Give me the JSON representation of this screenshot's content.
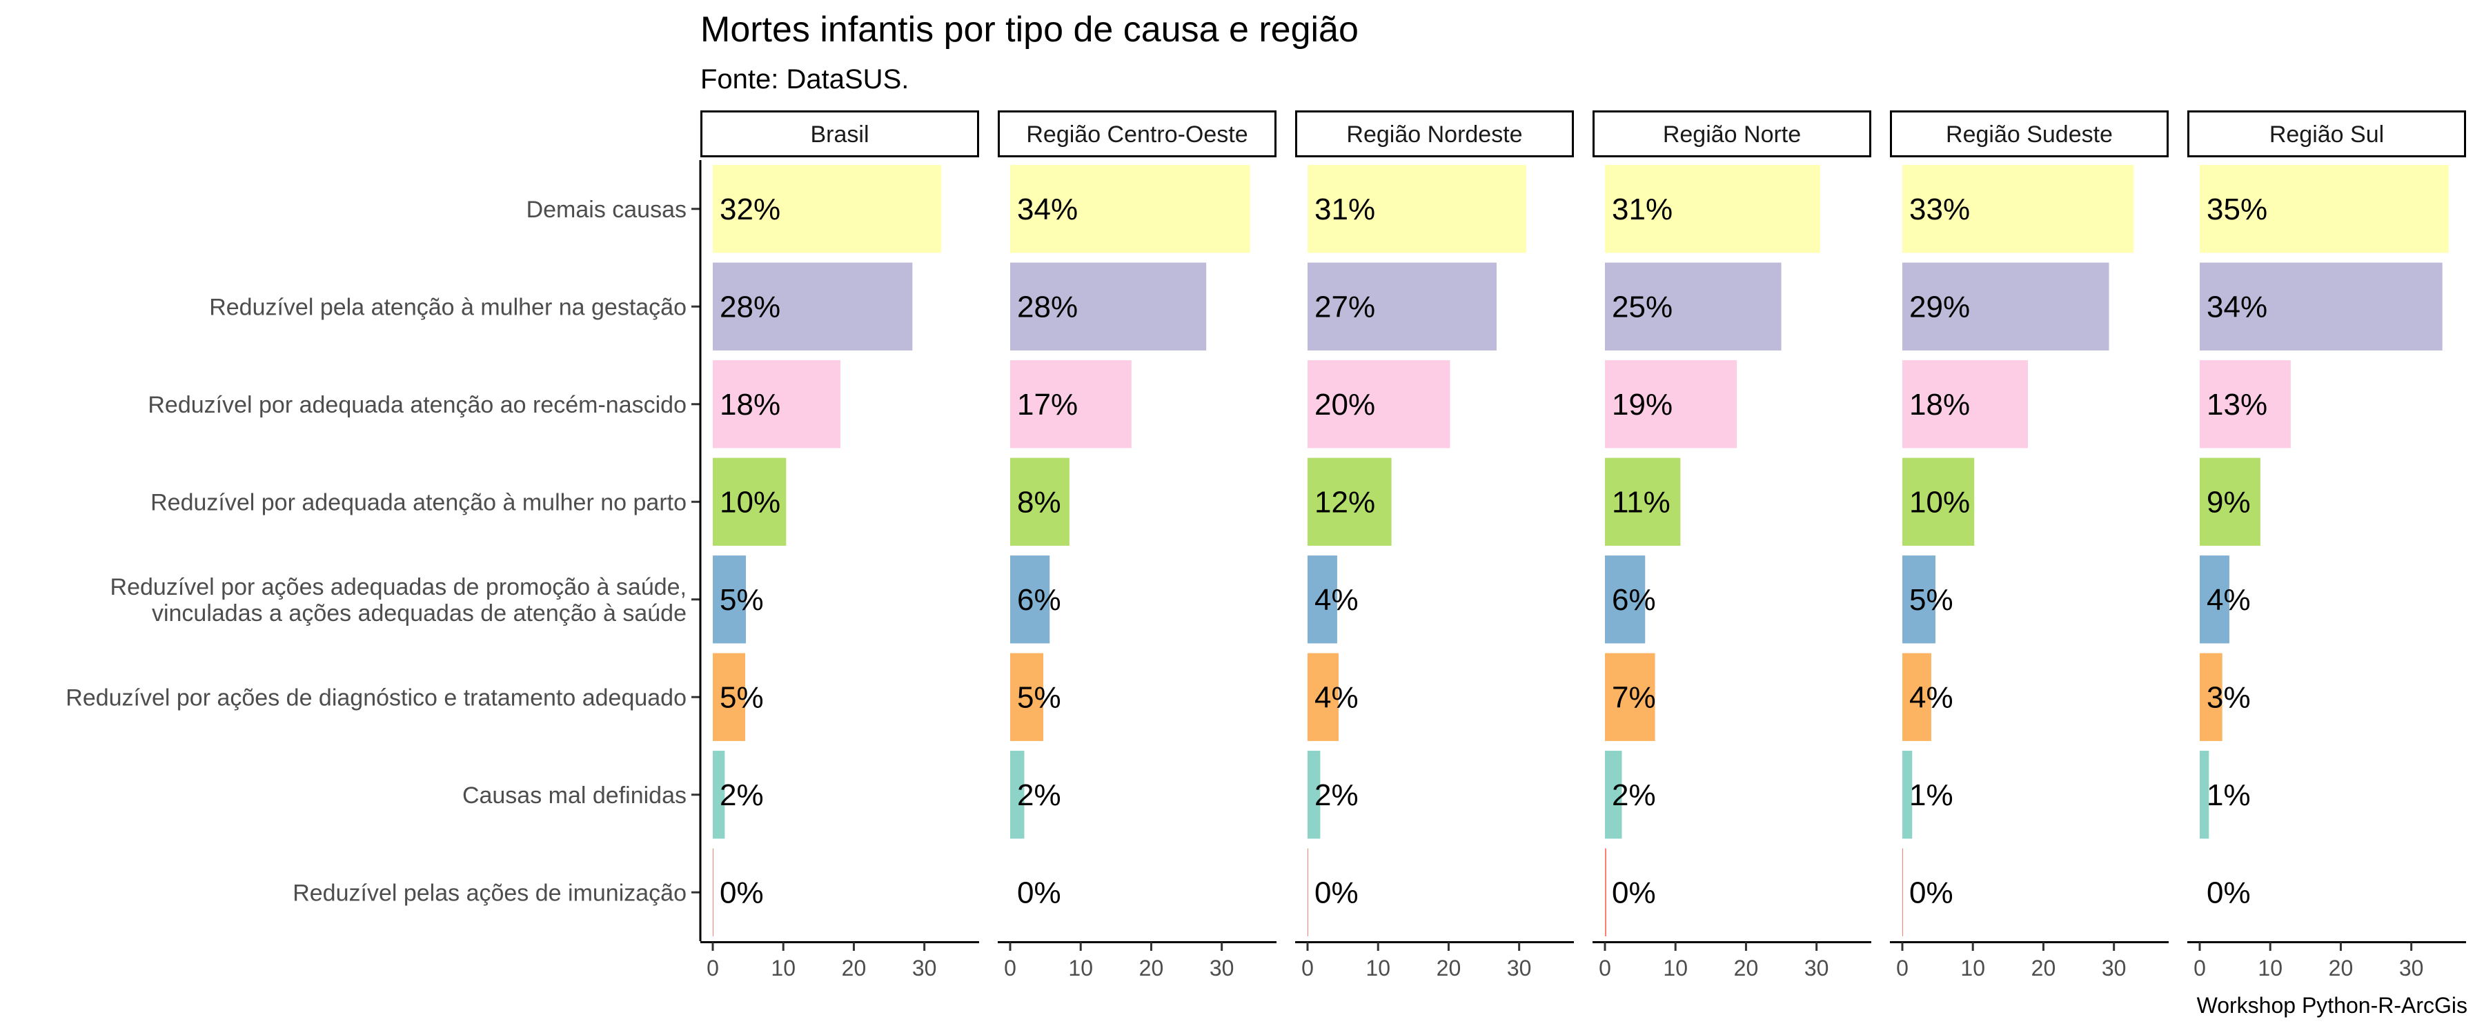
{
  "chart_data": {
    "type": "bar",
    "orientation": "horizontal",
    "title": "Mortes infantis por tipo de causa e região",
    "subtitle": "Fonte: DataSUS.",
    "caption": "Workshop Python-R-ArcGis",
    "xlim": [
      0,
      36
    ],
    "xticks": [
      0,
      10,
      20,
      30
    ],
    "grid": false,
    "legend": "none",
    "categories": [
      "Demais causas",
      "Reduzível pela atenção à mulher na gestação",
      "Reduzível por adequada atenção ao recém-nascido",
      "Reduzível por adequada atenção à mulher no parto",
      "Reduzível por ações adequadas de promoção à saúde,\nvinculadas a ações adequadas de atenção à saúde",
      "Reduzível por ações de diagnóstico e tratamento adequado",
      "Causas mal definidas",
      "Reduzível pelas ações de imunização"
    ],
    "colors": [
      "#FFFFB3",
      "#BEBADA",
      "#FCCDE5",
      "#B3DE69",
      "#80B1D3",
      "#FDB462",
      "#8DD3C7",
      "#FB8072"
    ],
    "panels": [
      {
        "name": "Brasil",
        "values": [
          32.4,
          28.3,
          18.1,
          10.4,
          4.7,
          4.6,
          1.7,
          0.1
        ],
        "labels": [
          "32%",
          "28%",
          "18%",
          "10%",
          "5%",
          "5%",
          "2%",
          "0%"
        ]
      },
      {
        "name": "Região Centro-Oeste",
        "values": [
          34.0,
          27.8,
          17.2,
          8.4,
          5.6,
          4.7,
          2.0,
          0.0
        ],
        "labels": [
          "34%",
          "28%",
          "17%",
          "8%",
          "6%",
          "5%",
          "2%",
          "0%"
        ]
      },
      {
        "name": "Região Nordeste",
        "values": [
          31.0,
          26.8,
          20.2,
          11.9,
          4.2,
          4.4,
          1.8,
          0.1
        ],
        "labels": [
          "31%",
          "27%",
          "20%",
          "12%",
          "4%",
          "4%",
          "2%",
          "0%"
        ]
      },
      {
        "name": "Região Norte",
        "values": [
          30.5,
          25.0,
          18.7,
          10.7,
          5.7,
          7.1,
          2.4,
          0.2
        ],
        "labels": [
          "31%",
          "25%",
          "19%",
          "11%",
          "6%",
          "7%",
          "2%",
          "0%"
        ]
      },
      {
        "name": "Região Sudeste",
        "values": [
          32.8,
          29.3,
          17.8,
          10.2,
          4.7,
          4.1,
          1.4,
          0.1
        ],
        "labels": [
          "33%",
          "29%",
          "18%",
          "10%",
          "5%",
          "4%",
          "1%",
          "0%"
        ]
      },
      {
        "name": "Região Sul",
        "values": [
          35.3,
          34.4,
          12.9,
          8.6,
          4.2,
          3.2,
          1.3,
          0.0
        ],
        "labels": [
          "35%",
          "34%",
          "13%",
          "9%",
          "4%",
          "3%",
          "1%",
          "0%"
        ]
      }
    ]
  }
}
